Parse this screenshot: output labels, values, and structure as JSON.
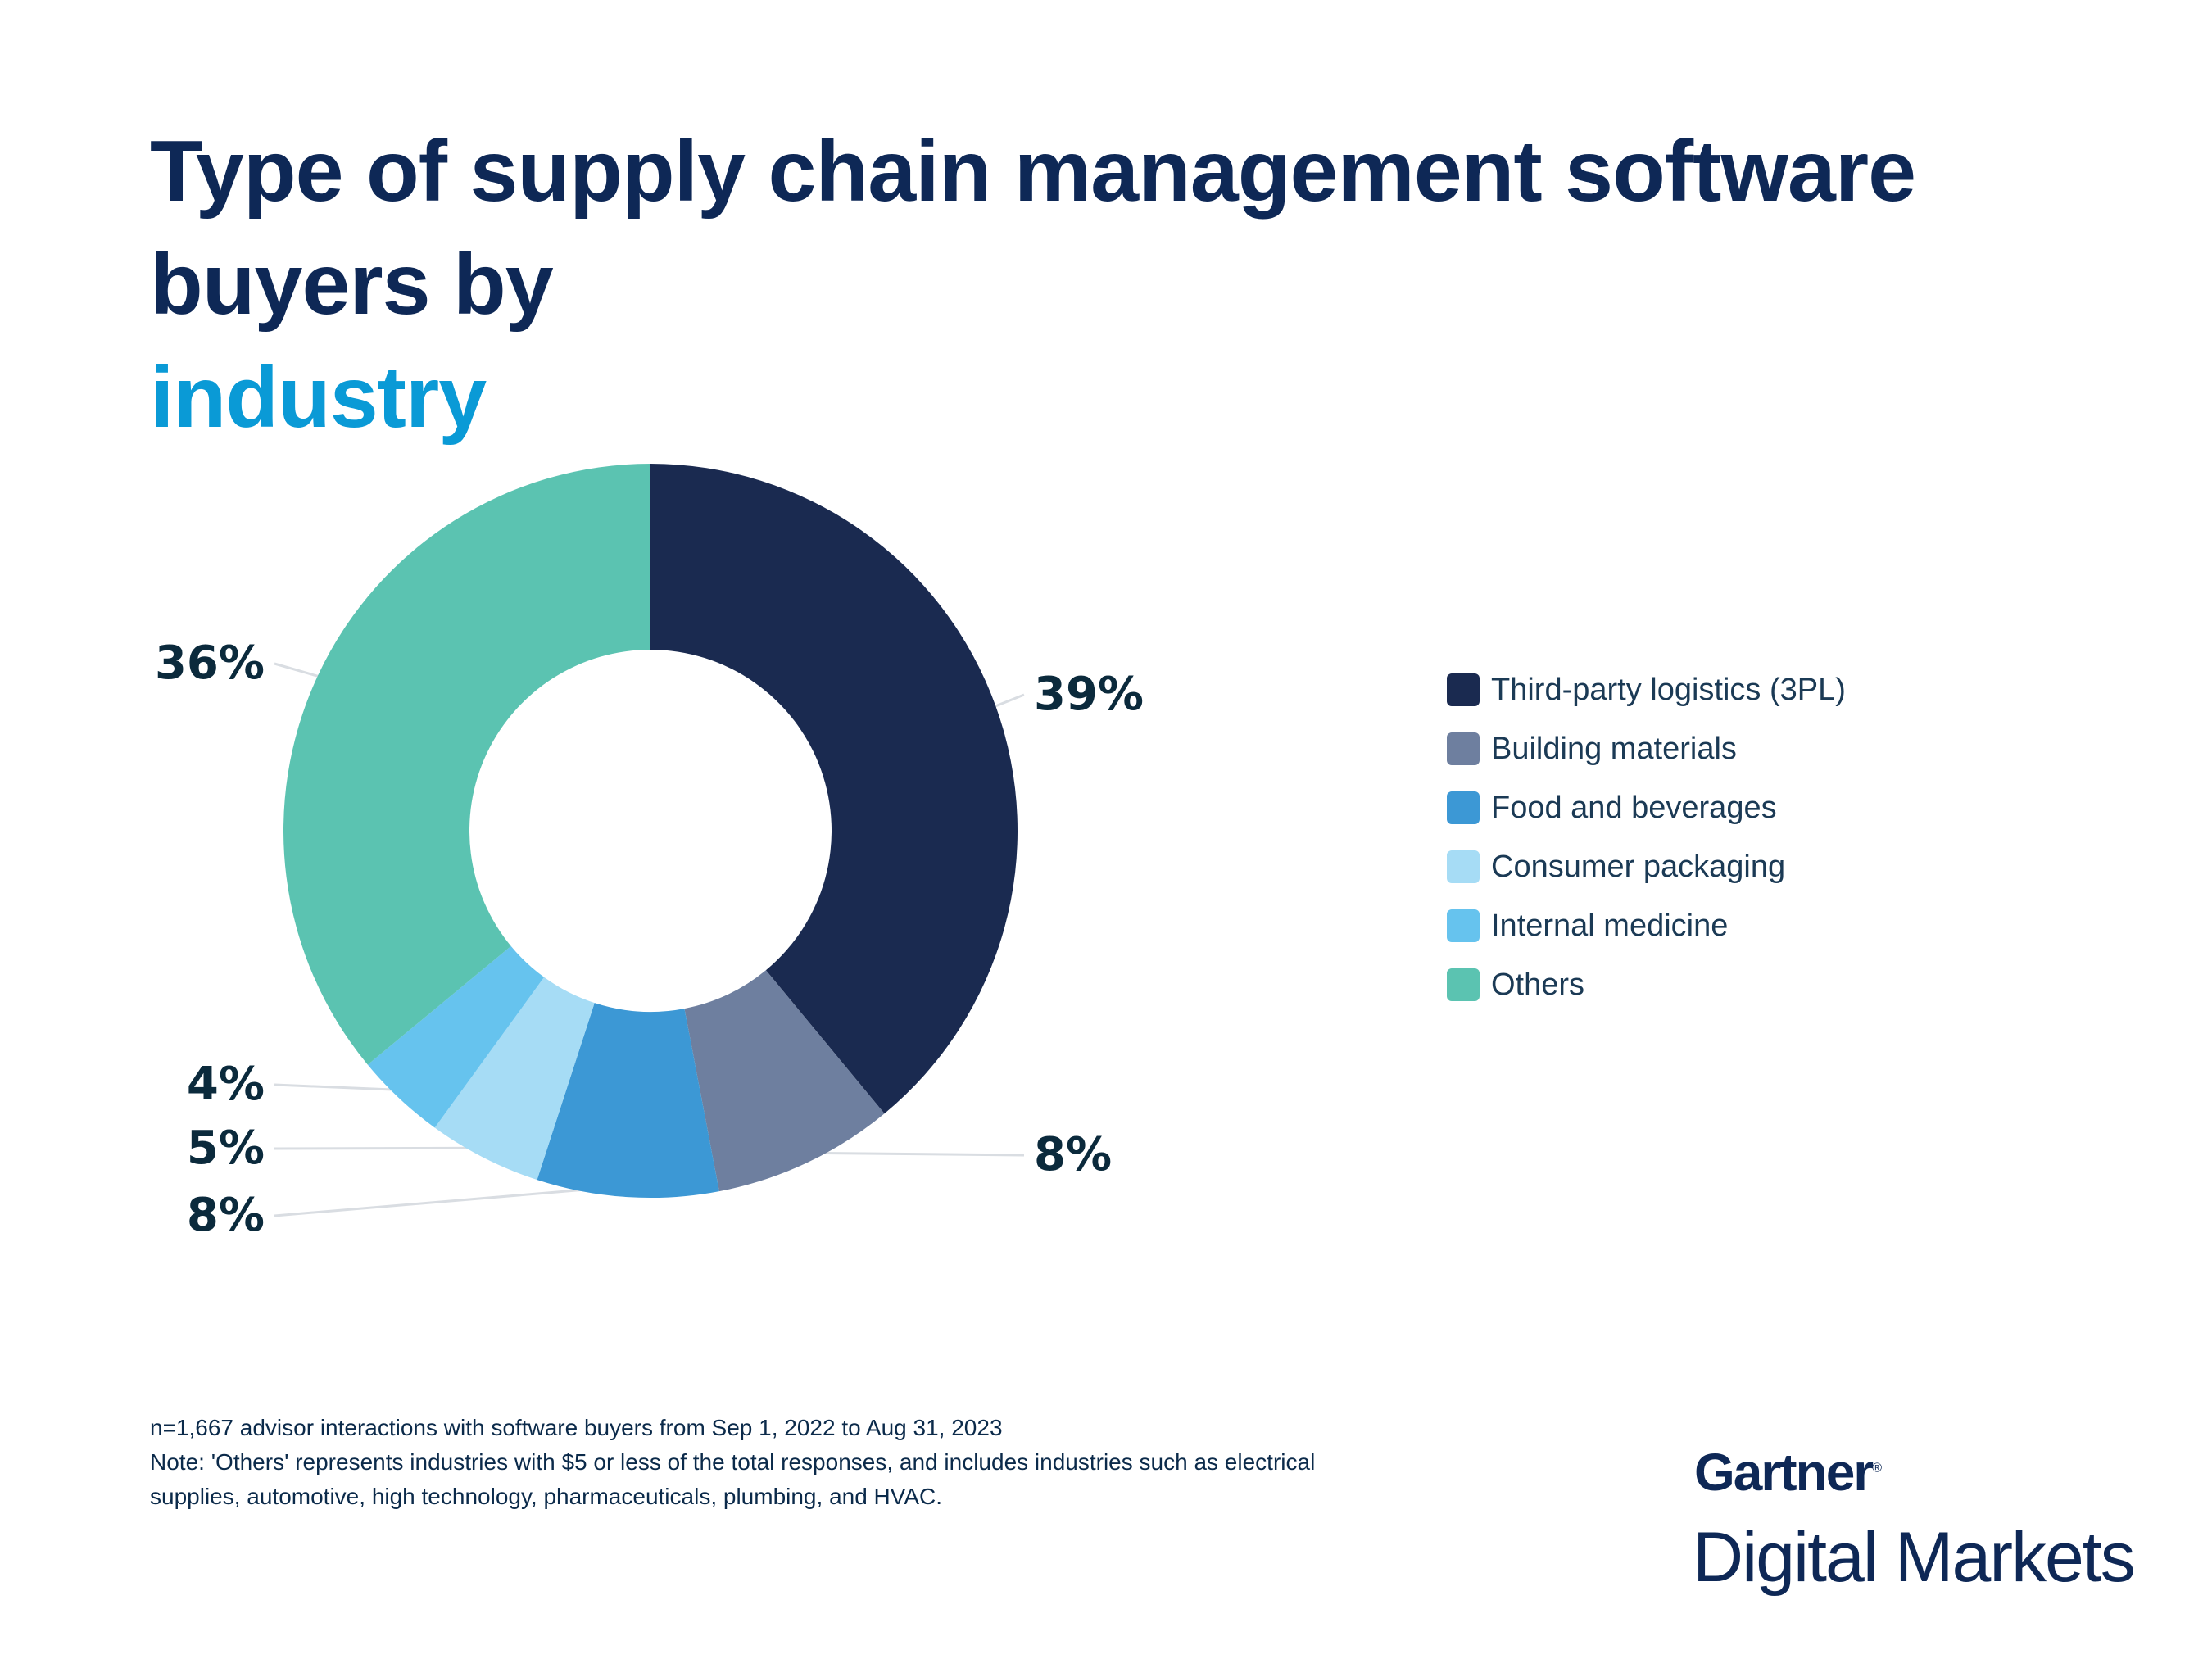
{
  "title": {
    "part1": "Type of supply chain management software buyers by ",
    "accent": "industry"
  },
  "chart_data": {
    "type": "pie",
    "donut": true,
    "categories": [
      "Third-party logistics (3PL)",
      "Building materials",
      "Food and beverages",
      "Consumer packaging",
      "Internal medicine",
      "Others"
    ],
    "values": [
      39,
      8,
      8,
      5,
      4,
      36
    ],
    "labels": [
      "39%",
      "8%",
      "8%",
      "5%",
      "4%",
      "36%"
    ],
    "colors": [
      "#1a2a50",
      "#6e7f9f",
      "#3c98d5",
      "#a6dcf5",
      "#66c3ee",
      "#5bc3b1"
    ],
    "legend_position": "right"
  },
  "footnote": {
    "line1": "n=1,667 advisor interactions with software buyers from Sep 1, 2022 to Aug 31, 2023",
    "line2": "Note: 'Others' represents industries with $5 or less of the total responses, and includes industries such as electrical",
    "line3": "supplies, automotive, high technology, pharmaceuticals, plumbing, and HVAC."
  },
  "logo": {
    "brand": "Gartner",
    "sub": "Digital Markets"
  }
}
